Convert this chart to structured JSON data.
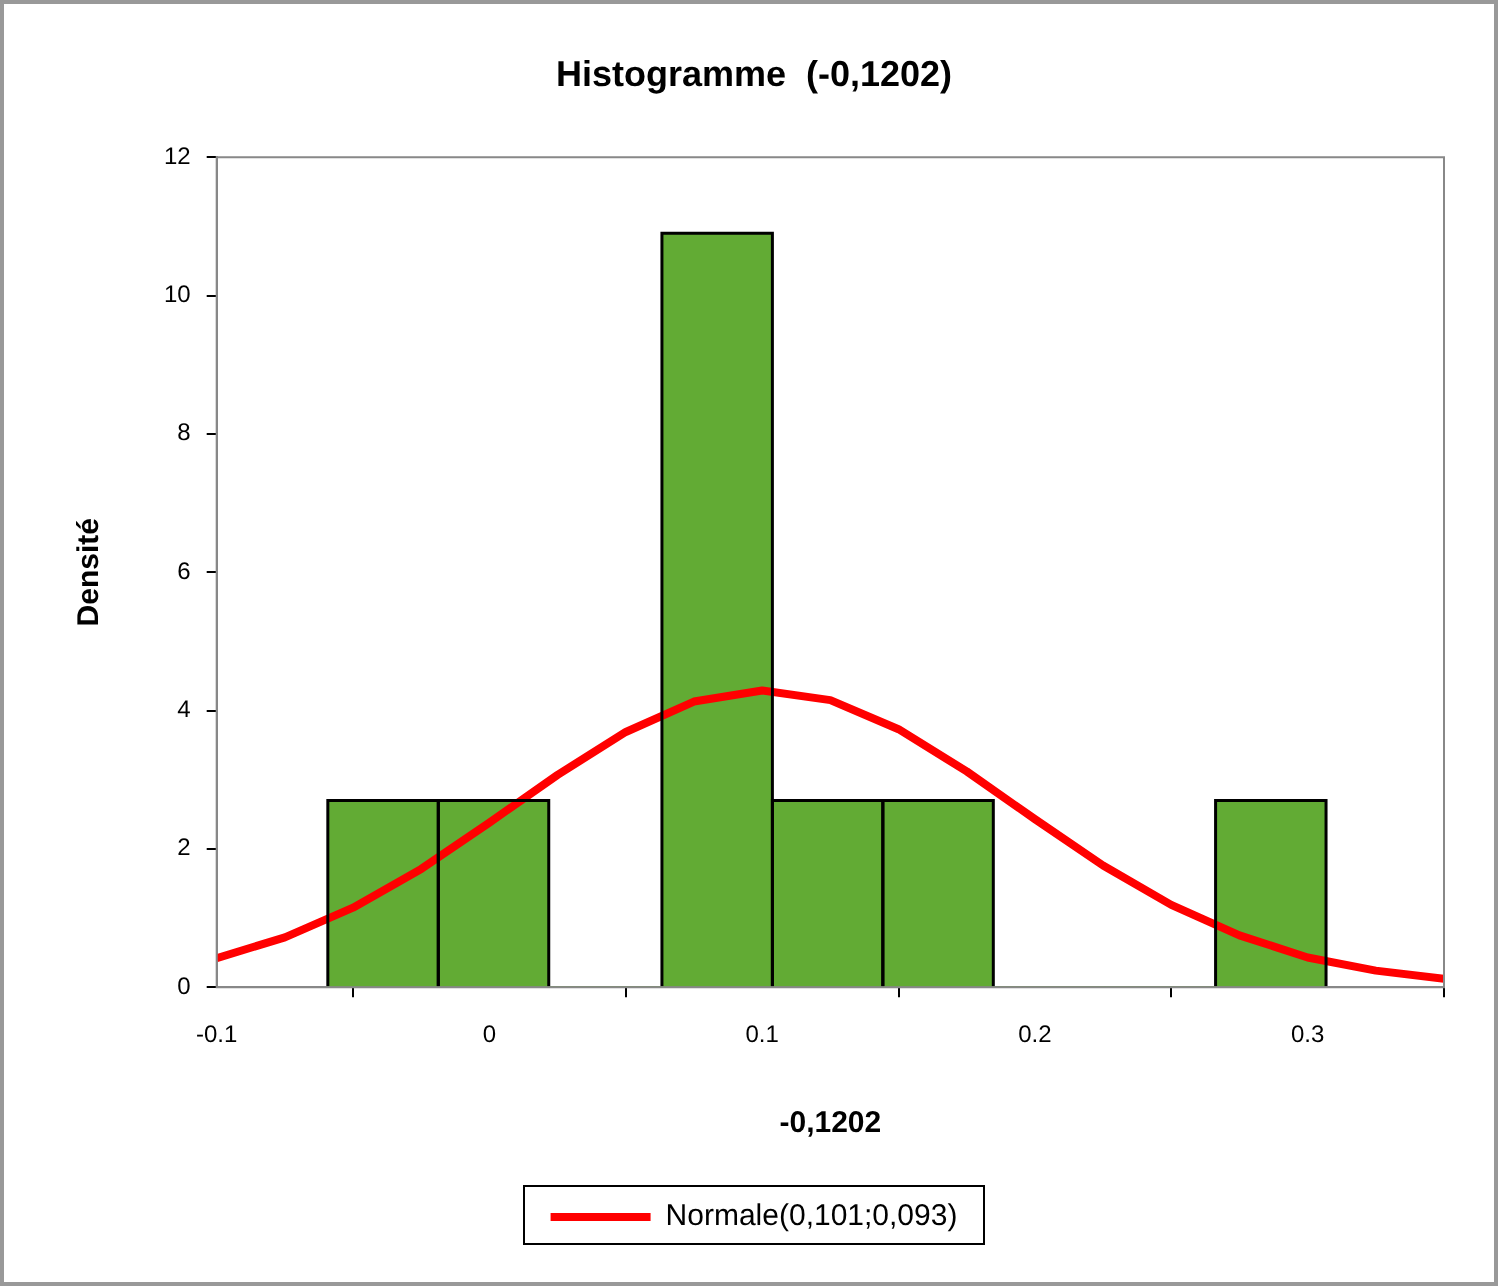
{
  "chart_data": {
    "type": "histogram",
    "title": "Histogramme  (-0,1202)",
    "xlabel": "-0,1202",
    "ylabel": "Densité",
    "bins": [
      -0.059,
      -0.019,
      0.022,
      0.063,
      0.104,
      0.144,
      0.185,
      0.226,
      0.266,
      0.307
    ],
    "values": [
      2.7,
      2.7,
      0,
      10.9,
      2.7,
      2.7,
      0,
      0,
      2.7
    ],
    "color": "#62ab34",
    "series": [
      {
        "type": "line",
        "name": "Normale(0,101;0,093)",
        "color": "#ff0000",
        "x": [
          -0.1,
          -0.075,
          -0.05,
          -0.025,
          0,
          0.025,
          0.05,
          0.075,
          0.1,
          0.125,
          0.15,
          0.175,
          0.2,
          0.225,
          0.25,
          0.275,
          0.3,
          0.325,
          0.35
        ],
        "values": [
          0.42,
          0.72,
          1.15,
          1.71,
          2.38,
          3.07,
          3.69,
          4.13,
          4.29,
          4.15,
          3.73,
          3.12,
          2.43,
          1.76,
          1.19,
          0.75,
          0.43,
          0.24,
          0.12
        ]
      }
    ],
    "xlim": [
      -0.1,
      0.35
    ],
    "xticks": [
      -0.1,
      0,
      0.1,
      0.2,
      0.3
    ],
    "ylim": [
      0,
      12
    ],
    "yticks": [
      0,
      2,
      4,
      6,
      8,
      10,
      12
    ],
    "grid": false,
    "legend": "bottom",
    "marker": "none",
    "line_style": "solid"
  }
}
